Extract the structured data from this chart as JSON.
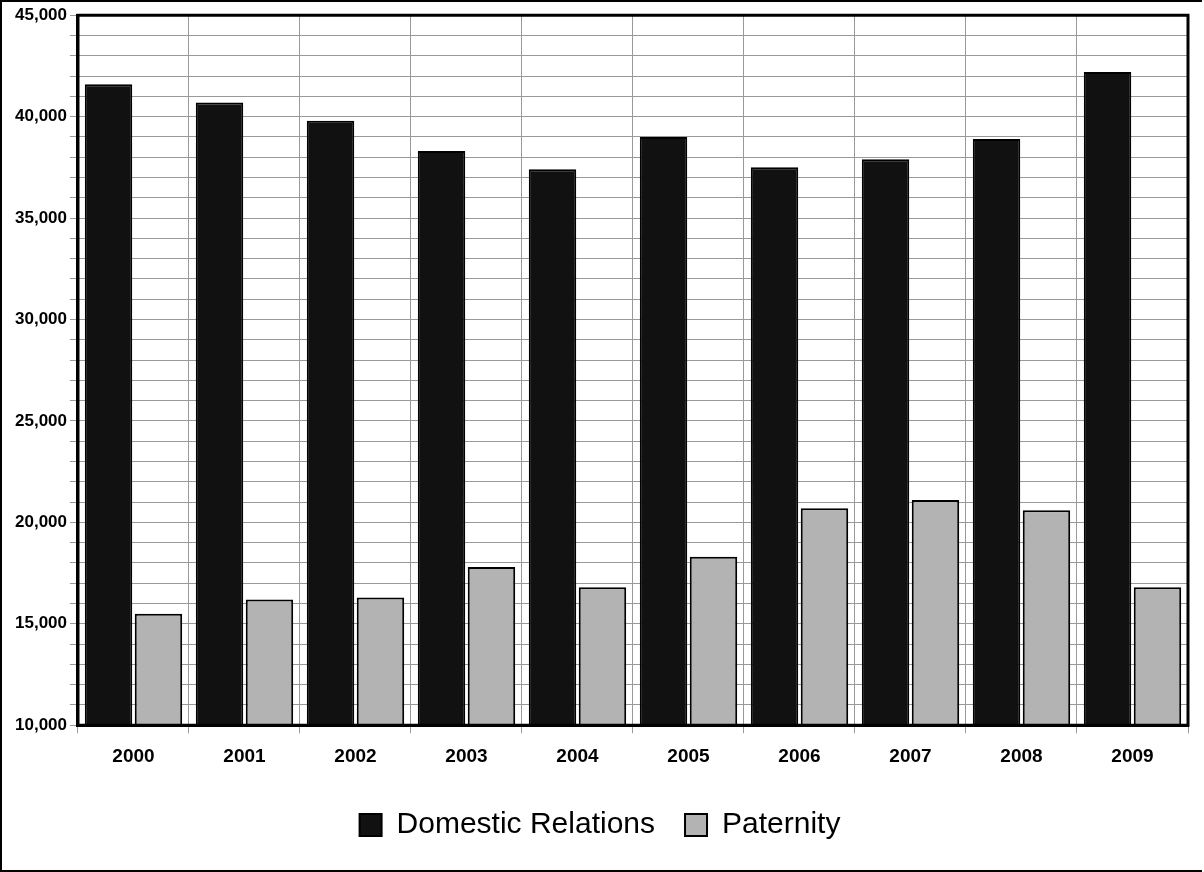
{
  "chart_data": {
    "type": "bar",
    "categories": [
      "2000",
      "2001",
      "2002",
      "2003",
      "2004",
      "2005",
      "2006",
      "2007",
      "2008",
      "2009"
    ],
    "series": [
      {
        "name": "Domestic Relations",
        "color": "#111111",
        "values": [
          41600,
          40700,
          39800,
          38300,
          37400,
          39000,
          37500,
          37900,
          38900,
          42200
        ]
      },
      {
        "name": "Paternity",
        "color": "#b3b3b3",
        "values": [
          15500,
          16200,
          16300,
          17800,
          16800,
          18300,
          20700,
          21100,
          20600,
          16800
        ]
      }
    ],
    "ylim": [
      10000,
      45000
    ],
    "yticks": [
      {
        "value": 10000,
        "label": "10,000"
      },
      {
        "value": 11000,
        "label": null
      },
      {
        "value": 12000,
        "label": null
      },
      {
        "value": 13000,
        "label": null
      },
      {
        "value": 14000,
        "label": null
      },
      {
        "value": 15000,
        "label": "15,000"
      },
      {
        "value": 16000,
        "label": null
      },
      {
        "value": 17000,
        "label": null
      },
      {
        "value": 18000,
        "label": null
      },
      {
        "value": 19000,
        "label": null
      },
      {
        "value": 20000,
        "label": "20,000"
      },
      {
        "value": 21000,
        "label": null
      },
      {
        "value": 22000,
        "label": null
      },
      {
        "value": 23000,
        "label": null
      },
      {
        "value": 24000,
        "label": null
      },
      {
        "value": 25000,
        "label": "25,000"
      },
      {
        "value": 26000,
        "label": null
      },
      {
        "value": 27000,
        "label": null
      },
      {
        "value": 28000,
        "label": null
      },
      {
        "value": 29000,
        "label": null
      },
      {
        "value": 30000,
        "label": "30,000"
      },
      {
        "value": 31000,
        "label": null
      },
      {
        "value": 32000,
        "label": null
      },
      {
        "value": 33000,
        "label": null
      },
      {
        "value": 34000,
        "label": null
      },
      {
        "value": 35000,
        "label": "35,000"
      },
      {
        "value": 36000,
        "label": null
      },
      {
        "value": 37000,
        "label": null
      },
      {
        "value": 38000,
        "label": null
      },
      {
        "value": 39000,
        "label": null
      },
      {
        "value": 40000,
        "label": "40,000"
      },
      {
        "value": 41000,
        "label": null
      },
      {
        "value": 42000,
        "label": null
      },
      {
        "value": 43000,
        "label": null
      },
      {
        "value": 44000,
        "label": null
      },
      {
        "value": 45000,
        "label": "45,000"
      }
    ],
    "grid": true,
    "legend": "bottom"
  }
}
